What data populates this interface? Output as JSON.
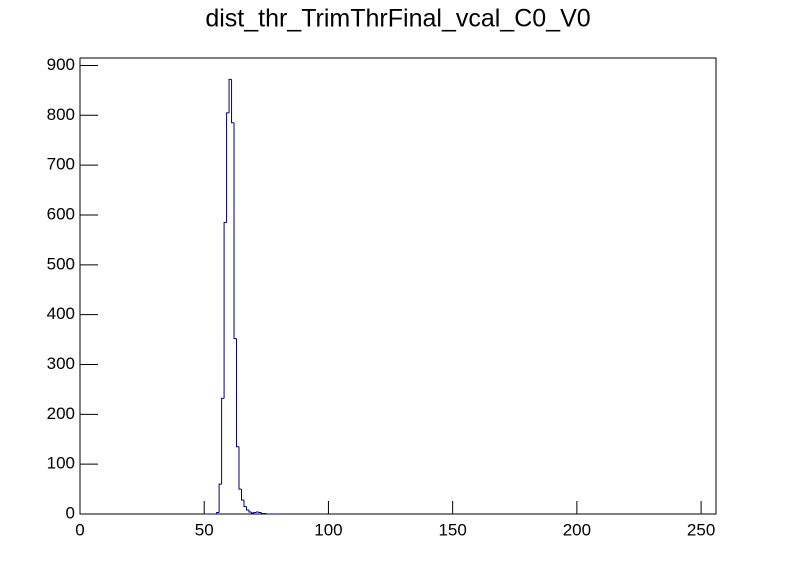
{
  "chart_data": {
    "type": "histogram",
    "title": "dist_thr_TrimThrFinal_vcal_C0_V0",
    "bins": [
      50,
      51,
      52,
      53,
      54,
      55,
      56,
      57,
      58,
      59,
      60,
      61,
      62,
      63,
      64,
      65,
      66,
      67,
      68,
      69,
      70,
      71,
      72,
      73,
      74,
      75,
      76,
      77,
      78,
      79,
      80
    ],
    "values": [
      0,
      0,
      0,
      0,
      0,
      3,
      60,
      232,
      585,
      805,
      872,
      785,
      352,
      135,
      50,
      28,
      15,
      8,
      4,
      2,
      3,
      4,
      3,
      1,
      1,
      0,
      0,
      0,
      0,
      0
    ],
    "color": "#000080",
    "xlim": [
      0,
      256
    ],
    "xticks": [
      0,
      50,
      100,
      150,
      200,
      250
    ],
    "ylim": [
      0,
      915
    ],
    "yticks": [
      0,
      100,
      200,
      300,
      400,
      500,
      600,
      700,
      800,
      900
    ]
  }
}
